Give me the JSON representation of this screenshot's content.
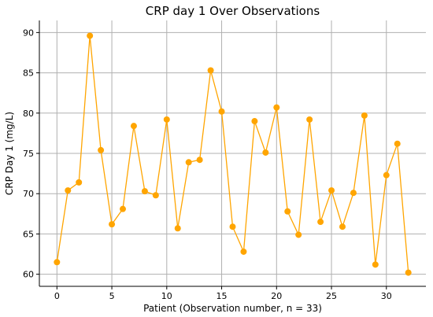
{
  "chart_data": {
    "type": "line",
    "title": "CRP day 1 Over Observations",
    "xlabel": "Patient (Observation number, n = 33)",
    "ylabel": "CRP Day 1 (mg/L)",
    "x": [
      0,
      1,
      2,
      3,
      4,
      5,
      6,
      7,
      8,
      9,
      10,
      11,
      12,
      13,
      14,
      15,
      16,
      17,
      18,
      19,
      20,
      21,
      22,
      23,
      24,
      25,
      26,
      27,
      28,
      29,
      30,
      31,
      32
    ],
    "series": [
      {
        "values": [
          61.5,
          70.4,
          71.4,
          89.6,
          75.4,
          66.2,
          68.1,
          78.4,
          70.3,
          69.8,
          79.2,
          65.7,
          73.9,
          74.2,
          85.3,
          80.2,
          65.9,
          62.8,
          79.0,
          75.1,
          80.7,
          67.8,
          64.9,
          79.2,
          66.5,
          70.4,
          65.9,
          70.1,
          79.7,
          61.2,
          72.3,
          76.2,
          60.2
        ],
        "color": "#FFA500"
      }
    ],
    "xlim": [
      -1.6,
      33.6
    ],
    "ylim": [
      58.5,
      91.5
    ],
    "xticks": [
      0,
      5,
      10,
      15,
      20,
      25,
      30
    ],
    "yticks": [
      60,
      65,
      70,
      75,
      80,
      85,
      90
    ],
    "grid": true,
    "legend": false
  }
}
